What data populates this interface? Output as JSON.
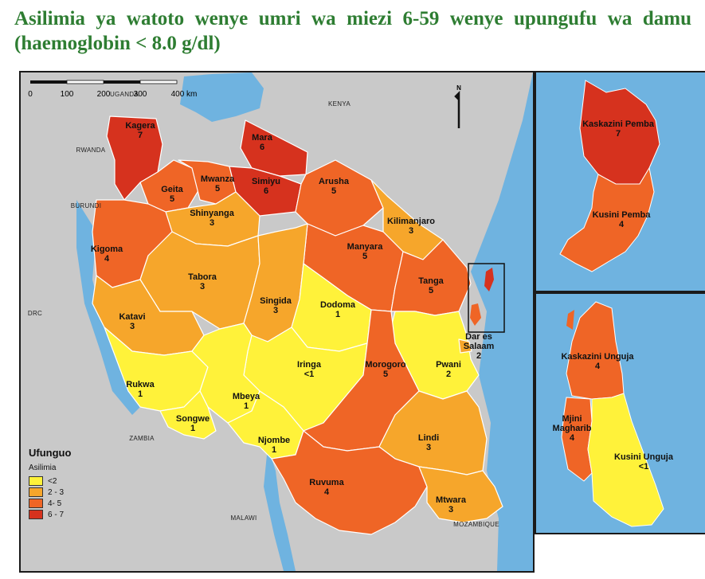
{
  "title": "Asilimia ya watoto wenye umri wa miezi 6-59 wenye upungufu wa damu (haemoglobin < 8.0 g/dl)",
  "colors": {
    "c1": "#fff23a",
    "c2": "#f6a62b",
    "c3": "#ef6526",
    "c4": "#d6321e",
    "water": "#6fb3e0",
    "land": "#c9c9c9",
    "border": "#ffffff"
  },
  "north_arrow": "N",
  "countries": {
    "uganda": "UGANDA",
    "kenya": "KENYA",
    "rwanda": "RWANDA",
    "burundi": "BURUNDI",
    "drc": "DRC",
    "zambia": "ZAMBIA",
    "malawi": "MALAWI",
    "mozambique": "MOZAMBIQUE"
  },
  "regions": [
    {
      "name": "Kagera",
      "value": "7",
      "class": 4
    },
    {
      "name": "Mara",
      "value": "6",
      "class": 4
    },
    {
      "name": "Geita",
      "value": "5",
      "class": 3
    },
    {
      "name": "Mwanza",
      "value": "5",
      "class": 3
    },
    {
      "name": "Simiyu",
      "value": "6",
      "class": 4
    },
    {
      "name": "Arusha",
      "value": "5",
      "class": 3
    },
    {
      "name": "Shinyanga",
      "value": "3",
      "class": 2
    },
    {
      "name": "Kilimanjaro",
      "value": "3",
      "class": 2
    },
    {
      "name": "Kigoma",
      "value": "4",
      "class": 3
    },
    {
      "name": "Manyara",
      "value": "5",
      "class": 3
    },
    {
      "name": "Tabora",
      "value": "3",
      "class": 2
    },
    {
      "name": "Tanga",
      "value": "5",
      "class": 3
    },
    {
      "name": "Singida",
      "value": "3",
      "class": 2
    },
    {
      "name": "Dodoma",
      "value": "1",
      "class": 1
    },
    {
      "name": "Katavi",
      "value": "3",
      "class": 2
    },
    {
      "name": "Dar es Salaam",
      "value": "2",
      "class": 2
    },
    {
      "name": "Iringa",
      "value": "<1",
      "class": 1
    },
    {
      "name": "Pwani",
      "value": "2",
      "class": 1
    },
    {
      "name": "Morogoro",
      "value": "5",
      "class": 3
    },
    {
      "name": "Rukwa",
      "value": "1",
      "class": 1
    },
    {
      "name": "Mbeya",
      "value": "1",
      "class": 1
    },
    {
      "name": "Songwe",
      "value": "1",
      "class": 1
    },
    {
      "name": "Njombe",
      "value": "1",
      "class": 1
    },
    {
      "name": "Lindi",
      "value": "3",
      "class": 2
    },
    {
      "name": "Ruvuma",
      "value": "4",
      "class": 3
    },
    {
      "name": "Mtwara",
      "value": "3",
      "class": 2
    }
  ],
  "insets": {
    "pemba": [
      {
        "name": "Kaskazini Pemba",
        "value": "7",
        "class": 4
      },
      {
        "name": "Kusini Pemba",
        "value": "4",
        "class": 3
      }
    ],
    "unguja": [
      {
        "name": "Kaskazini Unguja",
        "value": "4",
        "class": 3
      },
      {
        "name": "Mjini Magharib",
        "value": "4",
        "class": 3
      },
      {
        "name": "Kusini Unguja",
        "value": "<1",
        "class": 1
      }
    ]
  },
  "legend": {
    "title": "Ufunguo",
    "subtitle": "Asilimia",
    "items": [
      {
        "label": "<2",
        "class": 1
      },
      {
        "label": "2 - 3",
        "class": 2
      },
      {
        "label": "4- 5",
        "class": 3
      },
      {
        "label": "6 - 7",
        "class": 4
      }
    ]
  },
  "scale_bar": {
    "ticks": [
      "0",
      "100",
      "200",
      "300",
      "400 km"
    ]
  }
}
